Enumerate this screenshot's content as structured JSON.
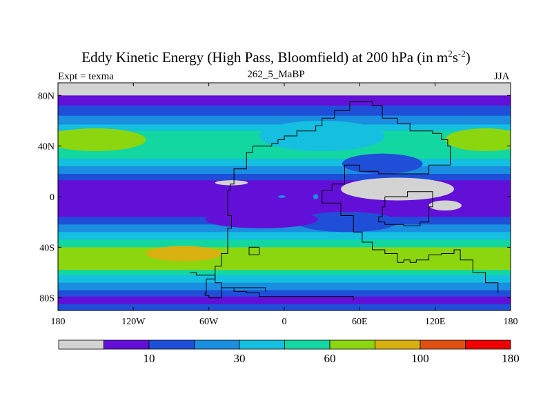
{
  "chart_data": {
    "type": "heatmap",
    "title_main": "Eddy Kinetic Energy (High Pass, Bloomfield) at 200 hPa (in m",
    "title_sup1": "2",
    "title_mid": "s",
    "title_sup2": "-2",
    "title_end": ")",
    "subtitle": "262_5_MaBP",
    "left_label": "Expt = texma",
    "right_label": "JJA",
    "x_range": [
      -180,
      180
    ],
    "y_range": [
      -90,
      90
    ],
    "x_ticks": [
      {
        "value": -180,
        "label": "180"
      },
      {
        "value": -120,
        "label": "120W"
      },
      {
        "value": -60,
        "label": "60W"
      },
      {
        "value": 0,
        "label": "0"
      },
      {
        "value": 60,
        "label": "60E"
      },
      {
        "value": 120,
        "label": "120E"
      },
      {
        "value": 180,
        "label": "180"
      }
    ],
    "y_ticks": [
      {
        "value": 80,
        "label": "80N"
      },
      {
        "value": 40,
        "label": "40N"
      },
      {
        "value": 0,
        "label": "0"
      },
      {
        "value": -40,
        "label": "40S"
      },
      {
        "value": -80,
        "label": "80S"
      }
    ],
    "colorbar": {
      "colors": [
        "#d3d3d3",
        "#6210d8",
        "#1f4fd8",
        "#1a8ee0",
        "#14bfe0",
        "#12d7a0",
        "#8cd610",
        "#d8b010",
        "#e05010",
        "#ee0000"
      ],
      "levels": [
        5,
        10,
        20,
        30,
        45,
        60,
        80,
        100,
        140,
        180
      ],
      "labels": [
        {
          "after_box": 1,
          "text": "10"
        },
        {
          "after_box": 3,
          "text": "30"
        },
        {
          "after_box": 5,
          "text": "60"
        },
        {
          "after_box": 7,
          "text": "100"
        },
        {
          "after_box": 9,
          "text": "180"
        }
      ]
    },
    "bands_north_to_south": [
      {
        "from_lat": 90,
        "to_lat": 80,
        "level": 0
      },
      {
        "from_lat": 80,
        "to_lat": 72,
        "level": 1
      },
      {
        "from_lat": 72,
        "to_lat": 64,
        "level": 2
      },
      {
        "from_lat": 64,
        "to_lat": 57,
        "level": 3
      },
      {
        "from_lat": 57,
        "to_lat": 52,
        "level": 4
      },
      {
        "from_lat": 52,
        "to_lat": 30,
        "level": 5
      },
      {
        "from_lat": 30,
        "to_lat": 24,
        "level": 4
      },
      {
        "from_lat": 24,
        "to_lat": 18,
        "level": 3
      },
      {
        "from_lat": 18,
        "to_lat": 13,
        "level": 2
      },
      {
        "from_lat": 13,
        "to_lat": -16,
        "level": 1
      },
      {
        "from_lat": -16,
        "to_lat": -22,
        "level": 2
      },
      {
        "from_lat": -22,
        "to_lat": -28,
        "level": 3
      },
      {
        "from_lat": -28,
        "to_lat": -34,
        "level": 4
      },
      {
        "from_lat": -34,
        "to_lat": -40,
        "level": 5
      },
      {
        "from_lat": -40,
        "to_lat": -58,
        "level": 6
      },
      {
        "from_lat": -58,
        "to_lat": -62,
        "level": 5
      },
      {
        "from_lat": -62,
        "to_lat": -68,
        "level": 4
      },
      {
        "from_lat": -68,
        "to_lat": -74,
        "level": 3
      },
      {
        "from_lat": -74,
        "to_lat": -79,
        "level": 2
      },
      {
        "from_lat": -79,
        "to_lat": -85,
        "level": 1
      },
      {
        "from_lat": -85,
        "to_lat": -90,
        "level": 2
      }
    ],
    "blobs": [
      {
        "lon": -160,
        "lat": 48,
        "rlon": 28,
        "rlat": 5,
        "level": 7
      },
      {
        "lon": 163,
        "lat": 48,
        "rlon": 20,
        "rlat": 5,
        "level": 7
      },
      {
        "lon": -150,
        "lat": 45,
        "rlon": 40,
        "rlat": 9,
        "level": 6
      },
      {
        "lon": 160,
        "lat": 45,
        "rlon": 32,
        "rlat": 9,
        "level": 6
      },
      {
        "lon": 30,
        "lat": 48,
        "rlon": 50,
        "rlat": 12,
        "level": 4
      },
      {
        "lon": 78,
        "lat": 26,
        "rlon": 32,
        "rlat": 8,
        "level": 2
      },
      {
        "lon": 50,
        "lat": -20,
        "rlon": 40,
        "rlat": 8,
        "level": 2
      },
      {
        "lon": -18,
        "lat": -18,
        "rlon": 45,
        "rlat": 7,
        "level": 1
      },
      {
        "lon": -80,
        "lat": -45,
        "rlon": 30,
        "rlat": 6,
        "level": 7
      },
      {
        "lon": -42,
        "lat": 11,
        "rlon": 13,
        "rlat": 2,
        "level": 0
      },
      {
        "lon": -2,
        "lat": 0,
        "rlon": 3,
        "rlat": 1,
        "level": 3
      },
      {
        "lon": 25,
        "lat": 0,
        "rlon": 2,
        "rlat": 2,
        "level": 3
      },
      {
        "lon": 90,
        "lat": 6,
        "rlon": 45,
        "rlat": 9,
        "level": 0
      },
      {
        "lon": 128,
        "lat": -7,
        "rlon": 13,
        "rlat": 4,
        "level": 0
      }
    ],
    "outline_lonlat": [
      [
        [
          -15,
          -75
        ],
        [
          -15,
          -72
        ],
        [
          -30,
          -72
        ],
        [
          -50,
          -80
        ],
        [
          -55,
          -80
        ],
        [
          -60,
          -78
        ],
        [
          -63,
          -76
        ],
        [
          -62,
          -65
        ],
        [
          -55,
          -55
        ],
        [
          -50,
          -45
        ],
        [
          -45,
          -38
        ],
        [
          -45,
          -25
        ],
        [
          -42,
          -15
        ],
        [
          -45,
          -5
        ],
        [
          -45,
          5
        ],
        [
          -43,
          10
        ],
        [
          -40,
          22
        ],
        [
          -30,
          35
        ],
        [
          -25,
          40
        ],
        [
          -10,
          42
        ],
        [
          -5,
          45
        ],
        [
          0,
          48
        ],
        [
          10,
          52
        ],
        [
          25,
          56
        ],
        [
          30,
          62
        ],
        [
          40,
          68
        ],
        [
          52,
          75
        ],
        [
          58,
          75
        ],
        [
          70,
          72
        ],
        [
          78,
          62
        ],
        [
          90,
          58
        ],
        [
          100,
          52
        ],
        [
          118,
          50
        ],
        [
          125,
          45
        ],
        [
          130,
          40
        ],
        [
          132,
          25
        ],
        [
          115,
          18
        ],
        [
          95,
          18
        ],
        [
          75,
          20
        ],
        [
          60,
          25
        ],
        [
          48,
          10
        ],
        [
          38,
          5
        ],
        [
          30,
          -5
        ],
        [
          45,
          -15
        ],
        [
          55,
          -28
        ],
        [
          62,
          -36
        ],
        [
          70,
          -42
        ],
        [
          80,
          -45
        ],
        [
          90,
          -52
        ],
        [
          95,
          -50
        ],
        [
          100,
          -52
        ],
        [
          105,
          -50
        ],
        [
          115,
          -46
        ],
        [
          125,
          -45
        ],
        [
          135,
          -42
        ],
        [
          140,
          -50
        ],
        [
          150,
          -60
        ],
        [
          160,
          -68
        ],
        [
          170,
          -76
        ]
      ],
      [
        [
          -20,
          -40
        ],
        [
          -20,
          -46
        ],
        [
          -28,
          -46
        ],
        [
          -28,
          -40
        ],
        [
          -20,
          -40
        ]
      ],
      [
        [
          80,
          0
        ],
        [
          98,
          4
        ],
        [
          110,
          4
        ],
        [
          118,
          1
        ],
        [
          118,
          -8
        ],
        [
          115,
          -20
        ],
        [
          108,
          -23
        ],
        [
          95,
          -22
        ],
        [
          80,
          -20
        ],
        [
          75,
          -16
        ],
        [
          78,
          -8
        ],
        [
          80,
          0
        ]
      ],
      [
        [
          -75,
          -60
        ],
        [
          -70,
          -62
        ],
        [
          -60,
          -62
        ],
        [
          -55,
          -68
        ],
        [
          -50,
          -72
        ],
        [
          -40,
          -75
        ],
        [
          -30,
          -76
        ],
        [
          -20,
          -79
        ],
        [
          50,
          -79
        ],
        [
          55,
          -82
        ]
      ]
    ]
  }
}
